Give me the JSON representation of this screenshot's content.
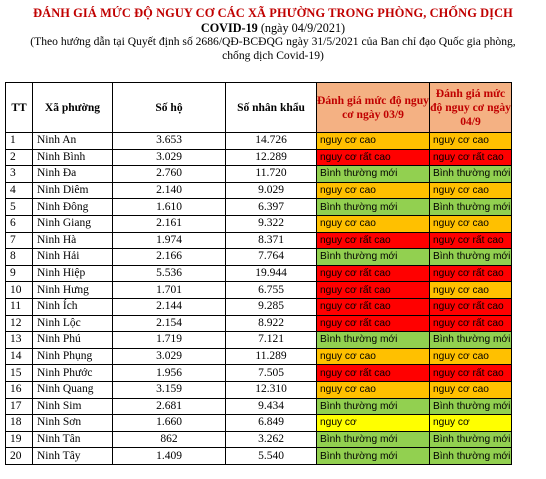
{
  "header": {
    "title_line1": "ĐÁNH GIÁ MỨC ĐỘ NGUY CƠ CÁC XÃ PHƯỜNG TRONG PHÒNG, CHỐNG DỊCH",
    "title_line2_bold": "COVID-19",
    "title_line2_date": "(ngày 04/9/2021)",
    "note_line1": "(Theo hướng dẫn tại Quyết định số 2686/QĐ-BCĐQG ngày 31/5/2021 của Ban chỉ đạo Quốc gia phòng,",
    "note_line2": "chống dịch Covid-19)"
  },
  "table": {
    "columns": {
      "tt": "TT",
      "name": "Xã phường",
      "households": "Số hộ",
      "population": "Số nhân khẩu",
      "risk_0309": "Đánh giá mức độ nguy cơ ngày 03/9",
      "risk_0409": "Đánh giá mức độ nguy cơ ngày 04/9"
    },
    "risk_colors": {
      "nguy cơ cao": "#ffc000",
      "nguy cơ rất cao": "#ff0000",
      "Bình thường mới": "#92d050",
      "nguy cơ": "#ffff00"
    },
    "rows": [
      {
        "tt": "1",
        "name": "Ninh An",
        "households": "3.653",
        "population": "14.726",
        "risk_0309": "nguy cơ cao",
        "risk_0409": "nguy cơ cao"
      },
      {
        "tt": "2",
        "name": "Ninh Bình",
        "households": "3.029",
        "population": "12.289",
        "risk_0309": "nguy cơ rất cao",
        "risk_0409": "nguy cơ rất cao"
      },
      {
        "tt": "3",
        "name": "Ninh Đa",
        "households": "2.760",
        "population": "11.720",
        "risk_0309": "Bình thường mới",
        "risk_0409": "Bình thường mới"
      },
      {
        "tt": "4",
        "name": "Ninh Diêm",
        "households": "2.140",
        "population": "9.029",
        "risk_0309": "nguy cơ cao",
        "risk_0409": "nguy cơ cao"
      },
      {
        "tt": "5",
        "name": "Ninh Đông",
        "households": "1.610",
        "population": "6.397",
        "risk_0309": "Bình thường mới",
        "risk_0409": "Bình thường mới"
      },
      {
        "tt": "6",
        "name": "Ninh Giang",
        "households": "2.161",
        "population": "9.322",
        "risk_0309": "nguy cơ cao",
        "risk_0409": "nguy cơ cao"
      },
      {
        "tt": "7",
        "name": "Ninh Hà",
        "households": "1.974",
        "population": "8.371",
        "risk_0309": "nguy cơ rất cao",
        "risk_0409": "nguy cơ rất cao"
      },
      {
        "tt": "8",
        "name": "Ninh Hải",
        "households": "2.166",
        "population": "7.764",
        "risk_0309": "Bình thường mới",
        "risk_0409": "Bình thường mới"
      },
      {
        "tt": "9",
        "name": "Ninh Hiệp",
        "households": "5.536",
        "population": "19.944",
        "risk_0309": "nguy cơ rất cao",
        "risk_0409": "nguy cơ rất cao"
      },
      {
        "tt": "10",
        "name": "Ninh Hưng",
        "households": "1.701",
        "population": "6.755",
        "risk_0309": "nguy cơ rất cao",
        "risk_0409": "nguy cơ cao"
      },
      {
        "tt": "11",
        "name": "Ninh Ích",
        "households": "2.144",
        "population": "9.285",
        "risk_0309": "nguy cơ rất cao",
        "risk_0409": "nguy cơ rất cao"
      },
      {
        "tt": "12",
        "name": "Ninh Lộc",
        "households": "2.154",
        "population": "8.922",
        "risk_0309": "nguy cơ rất cao",
        "risk_0409": "nguy cơ rất cao"
      },
      {
        "tt": "13",
        "name": "Ninh Phú",
        "households": "1.719",
        "population": "7.121",
        "risk_0309": "Bình thường mới",
        "risk_0409": "Bình thường mới"
      },
      {
        "tt": "14",
        "name": "Ninh Phụng",
        "households": "3.029",
        "population": "11.289",
        "risk_0309": "nguy cơ cao",
        "risk_0409": "nguy cơ cao"
      },
      {
        "tt": "15",
        "name": "Ninh Phước",
        "households": "1.956",
        "population": "7.505",
        "risk_0309": "nguy cơ rất cao",
        "risk_0409": "nguy cơ rất cao"
      },
      {
        "tt": "16",
        "name": "Ninh Quang",
        "households": "3.159",
        "population": "12.310",
        "risk_0309": "nguy cơ cao",
        "risk_0409": "nguy cơ cao"
      },
      {
        "tt": "17",
        "name": "Ninh Sim",
        "households": "2.681",
        "population": "9.434",
        "risk_0309": "Bình thường mới",
        "risk_0409": "Bình thường mới"
      },
      {
        "tt": "18",
        "name": "Ninh Sơn",
        "households": "1.660",
        "population": "6.849",
        "risk_0309": "nguy cơ",
        "risk_0409": "nguy cơ"
      },
      {
        "tt": "19",
        "name": "Ninh Tân",
        "households": "862",
        "population": "3.262",
        "risk_0309": "Bình thường mới",
        "risk_0409": "Bình thường mới"
      },
      {
        "tt": "20",
        "name": "Ninh Tây",
        "households": "1.409",
        "population": "5.540",
        "risk_0309": "Bình thường mới",
        "risk_0409": "Bình thường mới"
      }
    ]
  }
}
